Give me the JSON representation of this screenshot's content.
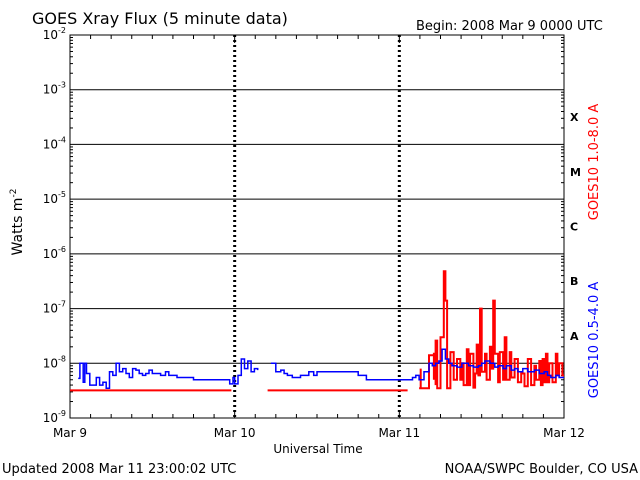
{
  "chart_data": {
    "type": "line",
    "title": "GOES Xray Flux (5 minute data)",
    "begin_label": "Begin:  2008 Mar 9 0000 UTC",
    "xlabel": "Universal Time",
    "ylabel": "Watts m",
    "ylabel_exponent": "-2",
    "x_tick_labels": [
      "Mar 9",
      "Mar 10",
      "Mar 11",
      "Mar 12"
    ],
    "x_range_days": [
      0,
      3
    ],
    "y_scale": "log",
    "y_range_exponent": [
      -9,
      -2
    ],
    "y_tick_exponents": [
      -9,
      -8,
      -7,
      -6,
      -5,
      -4,
      -3,
      -2
    ],
    "y_tick_base": "10",
    "grid": "horizontal at each decade, dashed vertical at each day",
    "flare_classes": [
      {
        "label": "A",
        "exponent": -7.5
      },
      {
        "label": "B",
        "exponent": -6.5
      },
      {
        "label": "C",
        "exponent": -5.5
      },
      {
        "label": "M",
        "exponent": -4.5
      },
      {
        "label": "X",
        "exponent": -3.5
      }
    ],
    "series": [
      {
        "name": "GOES10 1.0-8.0 A",
        "color": "#ff0000",
        "comment_units": "x in days since Mar 9 0000 UTC, y in W m^-2",
        "x": [
          0,
          0.98,
          0.98,
          1.2,
          1.2,
          2.05,
          2.05,
          2.12,
          2.13,
          2.13,
          2.18,
          2.18,
          2.21,
          2.21,
          2.22,
          2.22,
          2.23,
          2.25,
          2.27,
          2.28,
          2.29,
          2.31,
          2.33,
          2.35,
          2.37,
          2.38,
          2.39,
          2.41,
          2.42,
          2.43,
          2.45,
          2.46,
          2.47,
          2.48,
          2.49,
          2.5,
          2.52,
          2.53,
          2.55,
          2.56,
          2.57,
          2.58,
          2.6,
          2.61,
          2.63,
          2.64,
          2.65,
          2.67,
          2.68,
          2.7,
          2.72,
          2.74,
          2.76,
          2.78,
          2.8,
          2.82,
          2.83,
          2.85,
          2.86,
          2.87,
          2.88,
          2.89,
          2.9,
          2.91,
          2.93,
          2.95,
          2.96,
          2.97,
          2.99,
          3.0
        ],
        "y": [
          3.2e-09,
          3.2e-09,
          null,
          3.2e-09,
          3.2e-09,
          3.2e-09,
          null,
          3.5e-09,
          8e-09,
          3.5e-09,
          5e-09,
          1.4e-08,
          5e-09,
          1.5e-08,
          4e-09,
          2.6e-08,
          3.5e-09,
          3e-08,
          4.8e-07,
          1.4e-07,
          3.5e-09,
          1.6e-08,
          5e-09,
          1.2e-08,
          5e-09,
          1e-08,
          4e-09,
          1.8e-08,
          4e-09,
          1.5e-08,
          3.6e-09,
          6.5e-09,
          2.2e-08,
          6e-09,
          1e-07,
          7e-09,
          1.5e-08,
          5e-09,
          2e-08,
          8e-09,
          1.4e-07,
          1.5e-08,
          4.5e-09,
          1.6e-08,
          5e-09,
          3e-08,
          5e-09,
          1.6e-08,
          5.5e-09,
          1.2e-08,
          4.5e-09,
          6.5e-09,
          3.8e-09,
          1.2e-08,
          4e-09,
          9e-09,
          5e-09,
          1.1e-08,
          4e-09,
          1.2e-08,
          4.5e-09,
          1.5e-08,
          4.5e-09,
          1e-08,
          4.5e-09,
          1.5e-08,
          6e-09,
          1e-08,
          6e-09,
          6e-09
        ]
      },
      {
        "name": "GOES10 0.5-4.0 A",
        "color": "#0000ff",
        "comment_units": "x in days since Mar 9 0000 UTC, y in W m^-2",
        "x": [
          0.05,
          0.06,
          0.08,
          0.09,
          0.1,
          0.12,
          0.14,
          0.16,
          0.18,
          0.2,
          0.22,
          0.24,
          0.26,
          0.28,
          0.3,
          0.32,
          0.34,
          0.36,
          0.38,
          0.4,
          0.42,
          0.44,
          0.46,
          0.48,
          0.5,
          0.52,
          0.55,
          0.58,
          0.6,
          0.62,
          0.65,
          0.7,
          0.75,
          0.8,
          0.85,
          0.9,
          0.95,
          0.97,
          0.99,
          1.0,
          1.02,
          1.04,
          1.06,
          1.08,
          1.1,
          1.12,
          1.14,
          null,
          1.22,
          1.25,
          1.28,
          1.3,
          1.32,
          1.35,
          1.4,
          1.45,
          1.48,
          1.5,
          1.55,
          1.6,
          1.65,
          1.7,
          1.75,
          1.8,
          1.85,
          1.9,
          1.95,
          2.0,
          2.05,
          2.08,
          2.1,
          2.12,
          2.15,
          2.18,
          2.2,
          2.22,
          2.24,
          2.26,
          2.28,
          2.3,
          2.32,
          2.35,
          2.38,
          2.4,
          2.42,
          2.45,
          2.48,
          2.5,
          2.52,
          2.55,
          2.58,
          2.6,
          2.63,
          2.65,
          2.68,
          2.7,
          2.72,
          2.75,
          2.78,
          2.8,
          2.82,
          2.85,
          2.88,
          2.9,
          2.92,
          2.95,
          2.97,
          3.0
        ],
        "y": [
          5.3e-09,
          1e-08,
          4.5e-09,
          1e-08,
          6.5e-09,
          4e-09,
          4e-09,
          5.5e-09,
          4e-09,
          4.5e-09,
          3.5e-09,
          7e-09,
          6e-09,
          1e-08,
          7e-09,
          8e-09,
          6.5e-09,
          5.5e-09,
          8e-09,
          7.5e-09,
          6.5e-09,
          6e-09,
          6.5e-09,
          7.5e-09,
          6.5e-09,
          6.5e-09,
          6e-09,
          7e-09,
          6e-09,
          6e-09,
          5.5e-09,
          5.5e-09,
          5e-09,
          5e-09,
          5e-09,
          5e-09,
          5e-09,
          4.2e-09,
          5.5e-09,
          4.2e-09,
          6e-09,
          1.2e-08,
          8e-09,
          1.1e-08,
          7e-09,
          8e-09,
          7.5e-09,
          null,
          1e-08,
          7e-09,
          7.5e-09,
          6.5e-09,
          6e-09,
          5.5e-09,
          6e-09,
          7e-09,
          6e-09,
          7e-09,
          7e-09,
          7e-09,
          7e-09,
          7e-09,
          6e-09,
          5e-09,
          5e-09,
          5e-09,
          5e-09,
          5e-09,
          5e-09,
          5.5e-09,
          6e-09,
          5e-09,
          7e-09,
          1e-08,
          9e-09,
          1e-08,
          1.1e-08,
          1.8e-08,
          1.2e-08,
          1e-08,
          9e-09,
          8.5e-09,
          1e-08,
          1e-08,
          9e-09,
          8.5e-09,
          9e-09,
          1e-08,
          1.1e-08,
          1e-08,
          8.5e-09,
          9e-09,
          8e-09,
          9e-09,
          7.5e-09,
          8e-09,
          7e-09,
          8e-09,
          7e-09,
          7e-09,
          7.5e-09,
          6.5e-09,
          7e-09,
          6e-09,
          5.5e-09,
          6e-09,
          5.5e-09,
          5.5e-09
        ]
      }
    ],
    "footer_left": "Updated 2008 Mar 11 23:00:02 UTC",
    "footer_right": "NOAA/SWPC Boulder, CO USA"
  }
}
